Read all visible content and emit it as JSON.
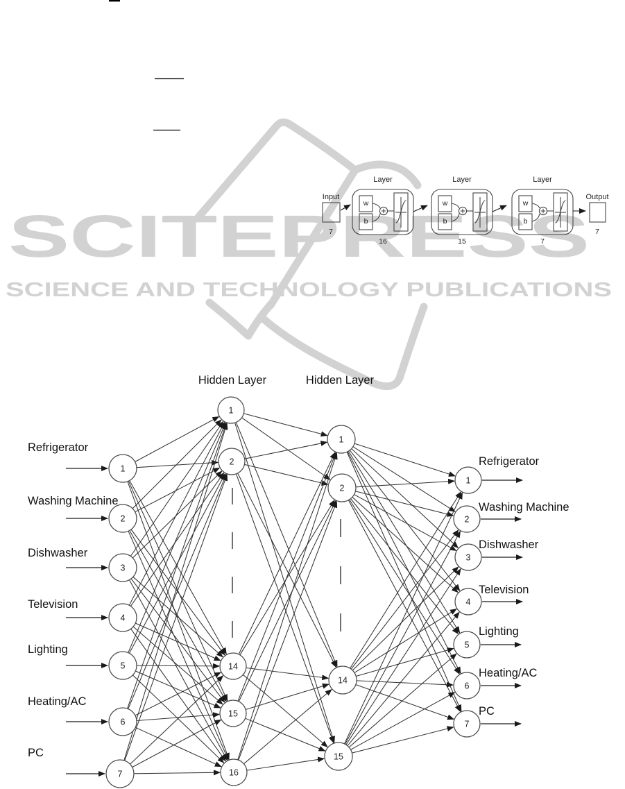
{
  "watermark": {
    "logo_text": "SCITEPRESS",
    "tagline": "SCIENCE AND TECHNOLOGY PUBLICATIONS",
    "color": "#d2d2d2"
  },
  "ink_color": "#333333",
  "block_diagram": {
    "input": {
      "label": "Input",
      "size": "7"
    },
    "output": {
      "label": "Output",
      "size": "7"
    },
    "layers": [
      {
        "label": "Layer",
        "weight_label": "w",
        "bias_label": "b",
        "size": "16"
      },
      {
        "label": "Layer",
        "weight_label": "w",
        "bias_label": "b",
        "size": "15"
      },
      {
        "label": "Layer",
        "weight_label": "w",
        "bias_label": "b",
        "size": "7"
      }
    ]
  },
  "network": {
    "hidden_layer_titles": [
      "Hidden Layer",
      "Hidden Layer"
    ],
    "input_nodes": [
      {
        "number": "1",
        "label": "Refrigerator"
      },
      {
        "number": "2",
        "label": "Washing Machine"
      },
      {
        "number": "3",
        "label": "Dishwasher"
      },
      {
        "number": "4",
        "label": "Television"
      },
      {
        "number": "5",
        "label": "Lighting"
      },
      {
        "number": "6",
        "label": "Heating/AC"
      },
      {
        "number": "7",
        "label": "PC"
      }
    ],
    "hidden_layer1_nodes": [
      "1",
      "2",
      "14",
      "15",
      "16"
    ],
    "hidden_layer2_nodes": [
      "1",
      "2",
      "14",
      "15"
    ],
    "output_nodes": [
      {
        "number": "1",
        "label": "Refrigerator"
      },
      {
        "number": "2",
        "label": "Washing Machine"
      },
      {
        "number": "3",
        "label": "Dishwasher"
      },
      {
        "number": "4",
        "label": "Television"
      },
      {
        "number": "5",
        "label": "Lighting"
      },
      {
        "number": "6",
        "label": "Heating/AC"
      },
      {
        "number": "7",
        "label": "PC"
      }
    ]
  }
}
